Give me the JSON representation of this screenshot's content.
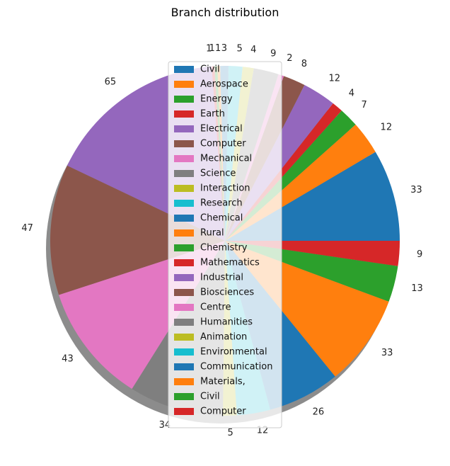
{
  "chart_data": {
    "type": "pie",
    "title": "Branch distribution",
    "start_angle_deg": 0,
    "direction": "counterclockwise",
    "shadow": true,
    "legend_position": "center",
    "slices": [
      {
        "label": "Civil",
        "value": 33,
        "color": "#1f77b4"
      },
      {
        "label": "Aerospace",
        "value": 12,
        "color": "#ff7f0e"
      },
      {
        "label": "Energy",
        "value": 7,
        "color": "#2ca02c"
      },
      {
        "label": "Earth",
        "value": 4,
        "color": "#d62728"
      },
      {
        "label": "Electrical",
        "value": 12,
        "color": "#9467bd"
      },
      {
        "label": "Computer",
        "value": 8,
        "color": "#8c564b"
      },
      {
        "label": "Mechanical",
        "value": 2,
        "color": "#e377c2"
      },
      {
        "label": "Science",
        "value": 9,
        "color": "#7f7f7f"
      },
      {
        "label": "Interaction",
        "value": 4,
        "color": "#bcbd22"
      },
      {
        "label": "Research",
        "value": 5,
        "color": "#17becf"
      },
      {
        "label": "Chemical",
        "value": 3,
        "color": "#1f77b4"
      },
      {
        "label": "Rural",
        "value": 1,
        "color": "#ff7f0e"
      },
      {
        "label": "Chemistry",
        "value": 1,
        "color": "#2ca02c"
      },
      {
        "label": "Mathematics",
        "value": 1,
        "color": "#d62728"
      },
      {
        "label": "Industrial",
        "value": 65,
        "color": "#9467bd"
      },
      {
        "label": "Biosciences",
        "value": 47,
        "color": "#8c564b"
      },
      {
        "label": "Centre",
        "value": 43,
        "color": "#e377c2"
      },
      {
        "label": "Humanities",
        "value": 34,
        "color": "#7f7f7f"
      },
      {
        "label": "Animation",
        "value": 5,
        "color": "#bcbd22"
      },
      {
        "label": "Environmental",
        "value": 12,
        "color": "#17becf"
      },
      {
        "label": "Communication",
        "value": 26,
        "color": "#1f77b4"
      },
      {
        "label": "Materials,",
        "value": 33,
        "color": "#ff7f0e"
      },
      {
        "label": "Civil",
        "value": 13,
        "color": "#2ca02c"
      },
      {
        "label": "Computer",
        "value": 9,
        "color": "#d62728"
      }
    ]
  }
}
